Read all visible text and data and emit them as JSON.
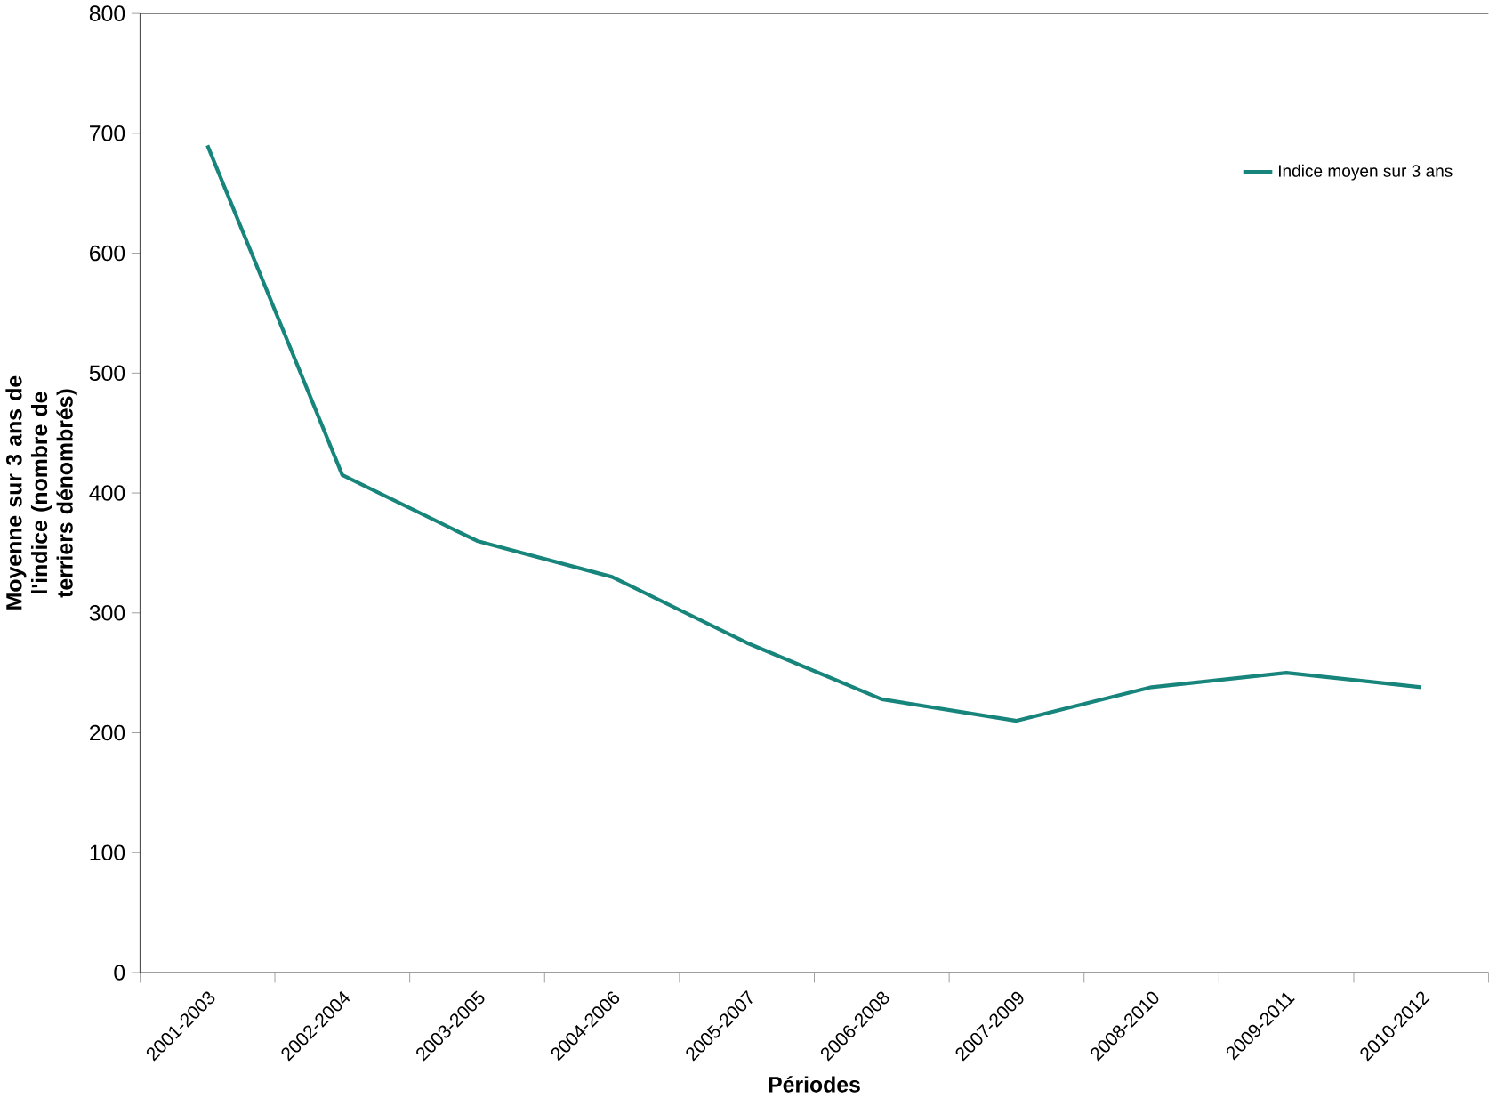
{
  "chart_data": {
    "type": "line",
    "xlabel": "Périodes",
    "ylabel": "Moyenne sur 3 ans de l'indice (nombre de terriers dénombrés)",
    "categories": [
      "2001-2003",
      "2002-2004",
      "2003-2005",
      "2004-2006",
      "2005-2007",
      "2006-2008",
      "2007-2009",
      "2008-2010",
      "2009-2011",
      "2010-2012"
    ],
    "series": [
      {
        "name": "Indice moyen sur 3 ans",
        "color": "#17857b",
        "values": [
          690,
          415,
          360,
          330,
          275,
          228,
          210,
          238,
          250,
          238
        ]
      }
    ],
    "ylim": [
      0,
      800
    ],
    "yticks": [
      0,
      100,
      200,
      300,
      400,
      500,
      600,
      700,
      800
    ],
    "legend": "top right",
    "grid": false,
    "marker": "none",
    "line_style": "solid"
  }
}
